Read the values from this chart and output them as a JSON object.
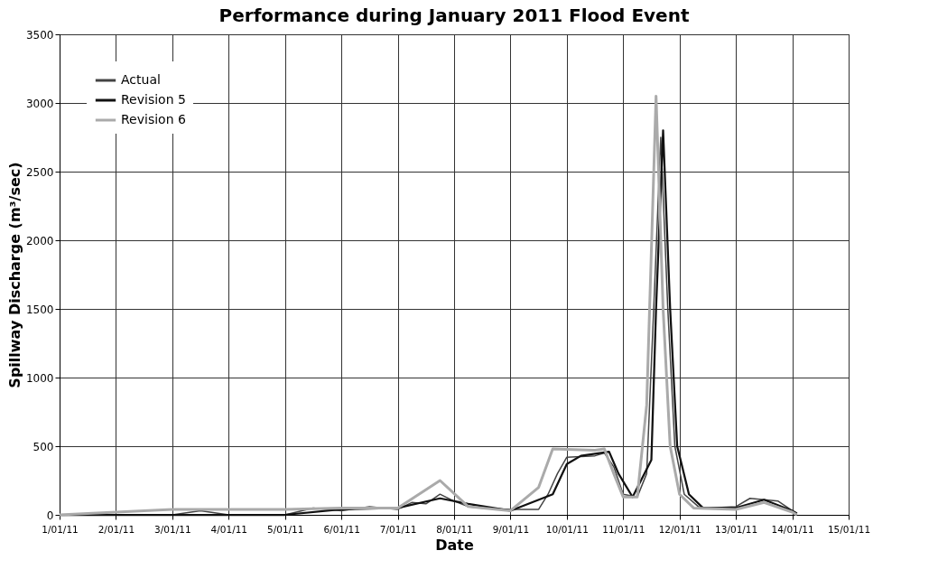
{
  "chart_data": {
    "type": "line",
    "title": "Performance during January 2011 Flood Event",
    "xlabel": "Date",
    "ylabel": "Spillway Discharge (m³/sec)",
    "xlim": [
      "2011-01-01",
      "2011-01-15"
    ],
    "xticks": [
      {
        "value": "2011-01-01",
        "label": "1/01/11"
      },
      {
        "value": "2011-01-02",
        "label": "2/01/11"
      },
      {
        "value": "2011-01-03",
        "label": "3/01/11"
      },
      {
        "value": "2011-01-04",
        "label": "4/01/11"
      },
      {
        "value": "2011-01-05",
        "label": "5/01/11"
      },
      {
        "value": "2011-01-06",
        "label": "6/01/11"
      },
      {
        "value": "2011-01-07",
        "label": "7/01/11"
      },
      {
        "value": "2011-01-08",
        "label": "8/01/11"
      },
      {
        "value": "2011-01-09",
        "label": "9/01/11"
      },
      {
        "value": "2011-01-10",
        "label": "10/01/11"
      },
      {
        "value": "2011-01-11",
        "label": "11/01/11"
      },
      {
        "value": "2011-01-12",
        "label": "12/01/11"
      },
      {
        "value": "2011-01-13",
        "label": "13/01/11"
      },
      {
        "value": "2011-01-14",
        "label": "14/01/11"
      },
      {
        "value": "2011-01-15",
        "label": "15/01/11"
      }
    ],
    "ylim": [
      0,
      3500
    ],
    "yticks": [
      0,
      500,
      1000,
      1500,
      2000,
      2500,
      3000,
      3500
    ],
    "grid": true,
    "legend": "top left",
    "series": [
      {
        "name": "Actual",
        "color": "#444444",
        "x": [
          "2011-01-01T00:00",
          "2011-01-03T00:00",
          "2011-01-03T12:00",
          "2011-01-04T00:00",
          "2011-01-05T00:00",
          "2011-01-05T12:00",
          "2011-01-06T00:00",
          "2011-01-06T12:00",
          "2011-01-07T00:00",
          "2011-01-07T06:00",
          "2011-01-07T12:00",
          "2011-01-07T18:00",
          "2011-01-08T00:00",
          "2011-01-08T06:00",
          "2011-01-08T12:00",
          "2011-01-09T00:00",
          "2011-01-09T12:00",
          "2011-01-09T16:00",
          "2011-01-09T20:00",
          "2011-01-10T00:00",
          "2011-01-10T12:00",
          "2011-01-10T16:00",
          "2011-01-10T20:00",
          "2011-01-11T00:00",
          "2011-01-11T06:00",
          "2011-01-11T10:00",
          "2011-01-11T13:00",
          "2011-01-11T16:00",
          "2011-01-11T19:00",
          "2011-01-11T22:00",
          "2011-01-12T02:00",
          "2011-01-12T08:00",
          "2011-01-12T12:00",
          "2011-01-13T00:00",
          "2011-01-13T06:00",
          "2011-01-13T18:00",
          "2011-01-14T00:00",
          "2011-01-14T02:00"
        ],
        "values": [
          0,
          0,
          30,
          0,
          0,
          50,
          30,
          60,
          40,
          90,
          80,
          150,
          100,
          60,
          50,
          40,
          40,
          150,
          300,
          420,
          430,
          450,
          350,
          150,
          130,
          300,
          1500,
          2750,
          1500,
          500,
          150,
          60,
          50,
          60,
          120,
          100,
          30,
          10
        ]
      },
      {
        "name": "Revision 5",
        "color": "#111111",
        "x": [
          "2011-01-01T00:00",
          "2011-01-05T00:00",
          "2011-01-06T00:00",
          "2011-01-07T00:00",
          "2011-01-07T18:00",
          "2011-01-08T06:00",
          "2011-01-09T00:00",
          "2011-01-09T18:00",
          "2011-01-10T00:00",
          "2011-01-10T06:00",
          "2011-01-10T18:00",
          "2011-01-10T22:00",
          "2011-01-11T04:00",
          "2011-01-11T12:00",
          "2011-01-11T14:00",
          "2011-01-11T17:00",
          "2011-01-11T20:00",
          "2011-01-11T23:00",
          "2011-01-12T04:00",
          "2011-01-12T10:00",
          "2011-01-13T00:00",
          "2011-01-13T12:00",
          "2011-01-14T00:00",
          "2011-01-14T02:00"
        ],
        "values": [
          0,
          0,
          40,
          50,
          120,
          80,
          30,
          150,
          370,
          430,
          460,
          300,
          130,
          400,
          1500,
          2800,
          1500,
          500,
          150,
          50,
          50,
          110,
          30,
          10
        ]
      },
      {
        "name": "Revision 6",
        "color": "#aaaaaa",
        "x": [
          "2011-01-01T00:00",
          "2011-01-03T00:00",
          "2011-01-04T00:00",
          "2011-01-05T00:00",
          "2011-01-06T00:00",
          "2011-01-07T00:00",
          "2011-01-07T18:00",
          "2011-01-08T06:00",
          "2011-01-09T00:00",
          "2011-01-09T12:00",
          "2011-01-09T18:00",
          "2011-01-10T12:00",
          "2011-01-10T16:00",
          "2011-01-10T20:00",
          "2011-01-11T00:00",
          "2011-01-11T06:00",
          "2011-01-11T10:00",
          "2011-01-11T14:00",
          "2011-01-11T17:00",
          "2011-01-11T20:00",
          "2011-01-12T00:00",
          "2011-01-12T06:00",
          "2011-01-13T00:00",
          "2011-01-13T12:00",
          "2011-01-14T00:00",
          "2011-01-14T02:00"
        ],
        "values": [
          0,
          40,
          40,
          40,
          50,
          50,
          250,
          60,
          30,
          200,
          480,
          470,
          480,
          300,
          130,
          130,
          800,
          3050,
          1500,
          500,
          150,
          50,
          40,
          90,
          20,
          0
        ]
      }
    ]
  }
}
